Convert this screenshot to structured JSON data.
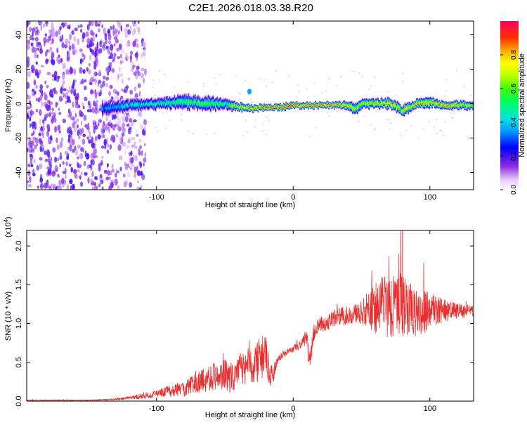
{
  "title": "C2E1.2026.018.03.38.R20",
  "colorbar": {
    "label": "Normalized spectral amplitude",
    "ticks": [
      "0.0",
      "0.2",
      "0.4",
      "0.6",
      "0.8"
    ],
    "tick_values": [
      0,
      0.2,
      0.4,
      0.6,
      0.8
    ],
    "range": [
      0,
      1
    ]
  },
  "chart_data": [
    {
      "type": "heatmap",
      "title": "",
      "xlabel": "Height of straight line (km)",
      "ylabel": "Frequency (Hz)",
      "xlim": [
        -195,
        132
      ],
      "ylim": [
        -50,
        48
      ],
      "x_ticks": [
        -100,
        0,
        100
      ],
      "x_tick_labels": [
        "-100",
        "0",
        "100"
      ],
      "y_ticks": [
        -40,
        -20,
        0,
        20,
        40
      ],
      "y_tick_labels": [
        "-40",
        "-20",
        "0",
        "20",
        "40"
      ],
      "noise_region_km": [
        -195,
        -108
      ],
      "signal_band": {
        "x": [
          -140,
          -120,
          -100,
          -80,
          -60,
          -50,
          -40,
          -30,
          -20,
          -10,
          0,
          10,
          20,
          30,
          40,
          45,
          50,
          60,
          70,
          80,
          90,
          100,
          110,
          120,
          130
        ],
        "center_hz": [
          -3,
          -1,
          0,
          1,
          0,
          0,
          -2,
          -3,
          -2,
          -2,
          -1,
          -1,
          -1,
          -1,
          -1,
          -3,
          0,
          0,
          0,
          -4,
          0,
          1,
          -1,
          -1,
          -1
        ],
        "halfwidth_hz": [
          4,
          3,
          3,
          3.5,
          3.5,
          3,
          2,
          1.5,
          1.5,
          1.5,
          1.5,
          1.5,
          1.5,
          1.5,
          2,
          2.5,
          2.5,
          2,
          2.5,
          2.5,
          2,
          2.5,
          2,
          2,
          2
        ],
        "peak_amplitude": [
          0.35,
          0.45,
          0.5,
          0.55,
          0.6,
          0.55,
          0.8,
          0.9,
          0.95,
          1.0,
          0.95,
          0.95,
          0.9,
          0.9,
          0.85,
          0.7,
          0.75,
          0.8,
          0.85,
          0.75,
          0.85,
          0.8,
          0.85,
          0.8,
          0.7
        ]
      },
      "grid": false
    },
    {
      "type": "line",
      "title": "",
      "xlabel": "Height of straight line (km)",
      "ylabel": "SNR (10 * v/v)",
      "y_multiplier": "(x10^4)",
      "xlim": [
        -195,
        132
      ],
      "ylim": [
        0,
        2.2
      ],
      "x_ticks": [
        -100,
        0,
        100
      ],
      "x_tick_labels": [
        "-100",
        "0",
        "100"
      ],
      "y_ticks": [
        0,
        0.5,
        1.0,
        1.5,
        2.0
      ],
      "y_tick_labels": [
        "0.0",
        "0.5",
        "1.0",
        "1.5",
        "2.0"
      ],
      "series": [
        {
          "color": "#e83030",
          "x": [
            -195,
            -170,
            -150,
            -130,
            -120,
            -110,
            -100,
            -90,
            -80,
            -70,
            -60,
            -50,
            -45,
            -40,
            -30,
            -25,
            -20,
            -17,
            -15,
            -12,
            -10,
            -8,
            -5,
            0,
            5,
            8,
            10,
            12,
            15,
            17,
            20,
            25,
            30,
            40,
            50,
            55,
            60,
            65,
            70,
            75,
            80,
            85,
            90,
            95,
            100,
            110,
            120,
            130
          ],
          "y": [
            0.01,
            0.01,
            0.01,
            0.02,
            0.04,
            0.06,
            0.09,
            0.12,
            0.15,
            0.22,
            0.3,
            0.32,
            0.28,
            0.36,
            0.45,
            0.5,
            0.55,
            0.28,
            0.32,
            0.5,
            0.55,
            0.58,
            0.62,
            0.66,
            0.72,
            0.78,
            0.8,
            0.45,
            0.85,
            0.95,
            0.98,
            1.0,
            1.05,
            1.1,
            1.12,
            1.15,
            1.18,
            1.2,
            1.22,
            1.18,
            1.2,
            1.15,
            1.1,
            1.12,
            1.15,
            1.15,
            1.15,
            1.15
          ],
          "variability": [
            0.005,
            0.005,
            0.005,
            0.01,
            0.02,
            0.04,
            0.05,
            0.08,
            0.1,
            0.14,
            0.18,
            0.2,
            0.2,
            0.22,
            0.25,
            0.28,
            0.3,
            0.15,
            0.15,
            0.05,
            0.04,
            0.04,
            0.04,
            0.05,
            0.06,
            0.1,
            0.12,
            0.12,
            0.12,
            0.1,
            0.1,
            0.1,
            0.12,
            0.12,
            0.15,
            0.25,
            0.35,
            0.4,
            0.45,
            0.4,
            0.45,
            0.35,
            0.3,
            0.3,
            0.25,
            0.15,
            0.1,
            0.08
          ]
        }
      ],
      "annotations": [
        {
          "x": 80,
          "y": 2.2,
          "text": ""
        }
      ],
      "grid": false
    }
  ]
}
